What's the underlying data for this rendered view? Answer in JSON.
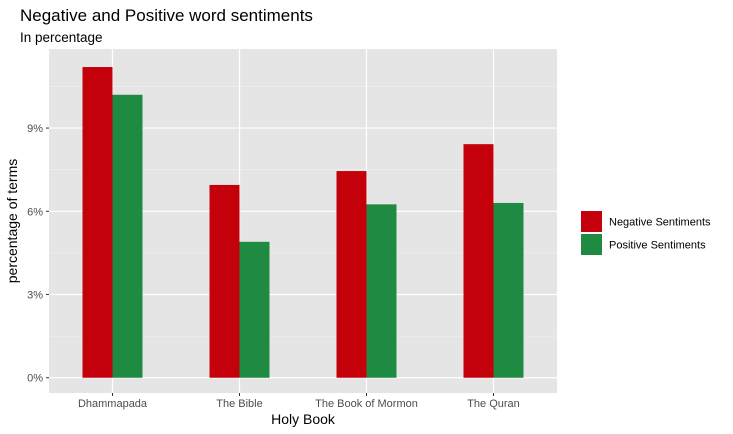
{
  "chart_data": {
    "type": "bar",
    "title": "Negative and Positive word sentiments",
    "subtitle": "In percentage",
    "xlabel": "Holy Book",
    "ylabel": "percentage of terms",
    "categories": [
      "Dhammapada",
      "The Bible",
      "The Book of Mormon",
      "The Quran"
    ],
    "series": [
      {
        "name": "Negative Sentiments",
        "color": "#c4000b",
        "values": [
          11.2,
          6.95,
          7.45,
          8.42
        ]
      },
      {
        "name": "Positive Sentiments",
        "color": "#1f8a41",
        "values": [
          10.2,
          4.9,
          6.25,
          6.3
        ]
      }
    ],
    "y_ticks": [
      0,
      3,
      6,
      9
    ],
    "y_tick_labels": [
      "0%",
      "3%",
      "6%",
      "9%"
    ],
    "ylim": [
      -0.55,
      11.85
    ],
    "grid": true,
    "panel_background": "#e5e5e5",
    "legend_position": "right"
  }
}
